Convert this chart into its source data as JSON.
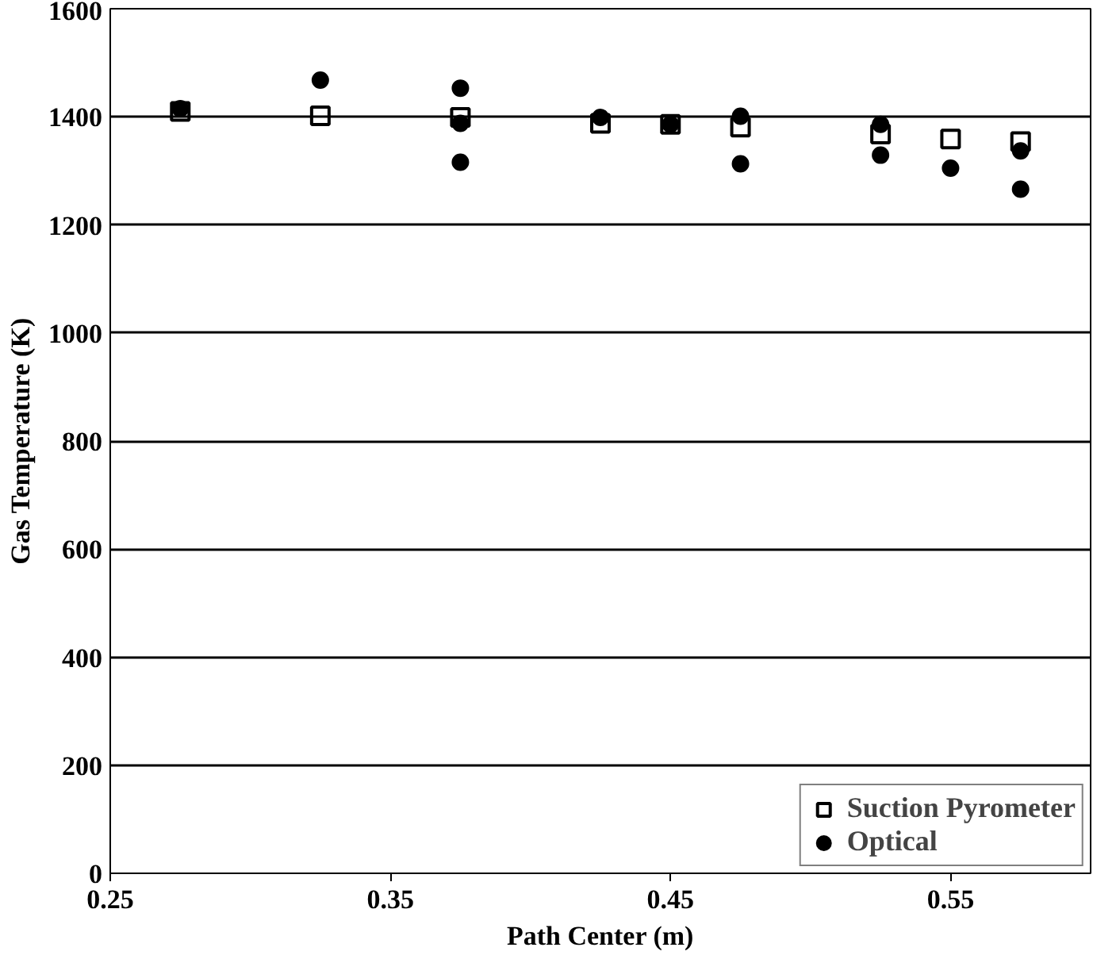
{
  "chart_data": {
    "type": "scatter",
    "xlabel": "Path Center (m)",
    "ylabel": "Gas Temperature (K)",
    "xlim": [
      0.25,
      0.6
    ],
    "xticks": [
      0.25,
      0.35,
      0.45,
      0.55
    ],
    "ylim": [
      0,
      1600
    ],
    "yticks": [
      0,
      200,
      400,
      600,
      800,
      1000,
      1200,
      1400,
      1600
    ],
    "grid": "y",
    "legend": "bottom right",
    "series": [
      {
        "name": "Suction Pyrometer",
        "color": "#000000",
        "marker": "square",
        "x": [
          0.275,
          0.325,
          0.375,
          0.425,
          0.45,
          0.475,
          0.525,
          0.55,
          0.575
        ],
        "values": [
          1410,
          1402,
          1399,
          1388,
          1386,
          1381,
          1368,
          1359,
          1354
        ]
      },
      {
        "name": "Optical",
        "color": "#000000",
        "marker": "circle",
        "x": [
          0.275,
          0.325,
          0.375,
          0.375,
          0.375,
          0.425,
          0.45,
          0.475,
          0.475,
          0.525,
          0.525,
          0.55,
          0.575,
          0.575
        ],
        "values": [
          1415,
          1468,
          1453,
          1388,
          1316,
          1399,
          1386,
          1401,
          1313,
          1386,
          1329,
          1305,
          1337,
          1266
        ]
      }
    ]
  }
}
